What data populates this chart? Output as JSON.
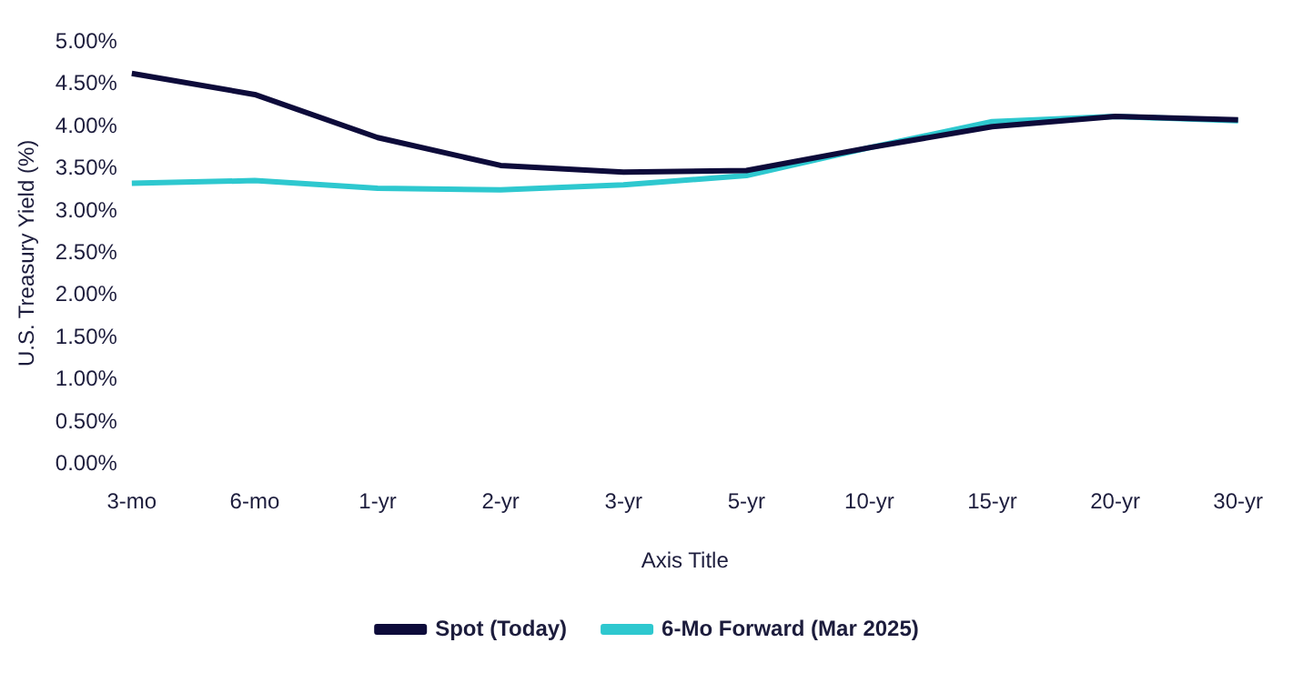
{
  "chart_data": {
    "type": "line",
    "xlabel": "Axis Title",
    "ylabel": "U.S. Treasury Yield (%)",
    "categories": [
      "3-mo",
      "6-mo",
      "1-yr",
      "2-yr",
      "3-yr",
      "5-yr",
      "10-yr",
      "15-yr",
      "20-yr",
      "30-yr"
    ],
    "series": [
      {
        "name": "Spot (Today)",
        "color": "#0d0b3a",
        "values": [
          4.63,
          4.38,
          3.87,
          3.54,
          3.46,
          3.48,
          3.75,
          4.0,
          4.12,
          4.08
        ]
      },
      {
        "name": "6-Mo Forward (Mar 2025)",
        "color": "#2ec8cf",
        "values": [
          3.33,
          3.36,
          3.27,
          3.25,
          3.31,
          3.42,
          3.75,
          4.06,
          4.12,
          4.07
        ]
      }
    ],
    "ylim": [
      0,
      5
    ],
    "yticks": [
      {
        "value": 0,
        "label": "0.00%"
      },
      {
        "value": 0.5,
        "label": "0.50%"
      },
      {
        "value": 1,
        "label": "1.00%"
      },
      {
        "value": 1.5,
        "label": "1.50%"
      },
      {
        "value": 2,
        "label": "2.00%"
      },
      {
        "value": 2.5,
        "label": "2.50%"
      },
      {
        "value": 3,
        "label": "3.00%"
      },
      {
        "value": 3.5,
        "label": "3.50%"
      },
      {
        "value": 4,
        "label": "4.00%"
      },
      {
        "value": 4.5,
        "label": "4.50%"
      },
      {
        "value": 5,
        "label": "5.00%"
      }
    ],
    "grid": false,
    "legend": "bottom",
    "marker": "none",
    "line_style": "solid"
  }
}
